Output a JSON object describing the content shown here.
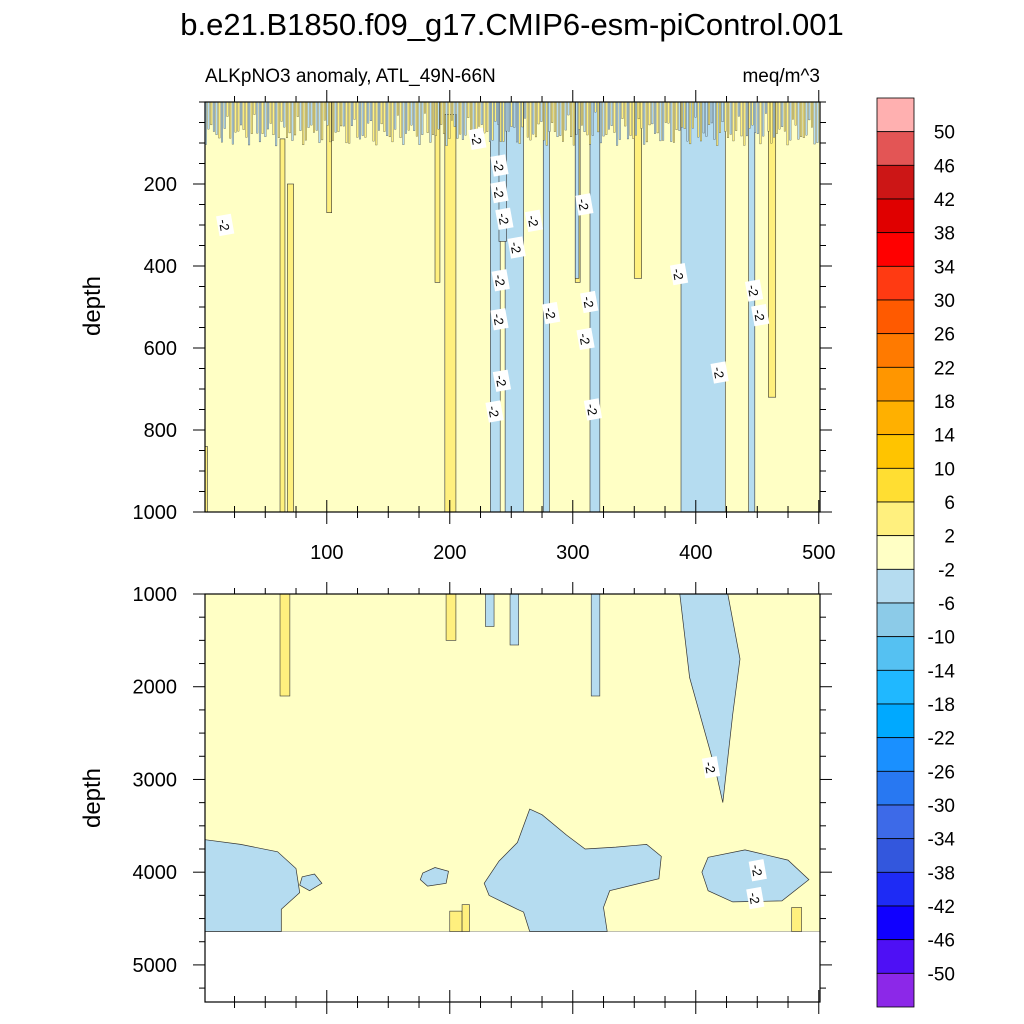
{
  "chart_data": {
    "type": "contour",
    "title": "b.e21.B1850.f09_g17.CMIP6-esm-piControl.001",
    "subtitle_left": "ALKpNO3 anomaly, ATL_49N-66N",
    "subtitle_right": "meq/m^3",
    "xlim": [
      1,
      501
    ],
    "x_ticks": [
      100,
      200,
      300,
      400,
      500
    ],
    "colors": {
      "pos2": "#ffffc5",
      "pos6": "#fff07e",
      "neg2": "#b5dcf0",
      "neg6": "#8ccbe8",
      "line": "#333333",
      "missing": "#ffffff"
    },
    "panels": [
      {
        "name": "upper",
        "ylabel": "depth",
        "ylim": [
          0,
          1000
        ],
        "y_ticks": [
          200,
          400,
          600,
          800,
          1000
        ],
        "contour_label": "-2",
        "labels": [
          [
            222,
            90
          ],
          [
            240,
            155
          ],
          [
            240,
            220
          ],
          [
            244,
            285
          ],
          [
            268,
            290
          ],
          [
            254,
            355
          ],
          [
            241,
            435
          ],
          [
            309,
            250
          ],
          [
            313,
            488
          ],
          [
            310,
            578
          ],
          [
            282,
            515
          ],
          [
            240,
            530
          ],
          [
            242,
            680
          ],
          [
            316,
            750
          ],
          [
            236,
            755
          ],
          [
            386,
            420
          ],
          [
            419,
            660
          ],
          [
            447,
            460
          ],
          [
            452,
            520
          ],
          [
            17,
            300
          ]
        ],
        "neg_bands": [
          [
            233,
            241,
            0,
            1000
          ],
          [
            245,
            260,
            0,
            1000
          ],
          [
            276,
            281,
            0,
            1000
          ],
          [
            314,
            322,
            0,
            1000
          ],
          [
            388,
            424,
            0,
            1000
          ],
          [
            443,
            448,
            0,
            1000
          ],
          [
            302,
            305,
            0,
            430
          ],
          [
            240,
            246,
            0,
            340
          ]
        ],
        "pos_bands": [
          [
            62,
            66,
            90,
            1000
          ],
          [
            68,
            73,
            200,
            1000
          ],
          [
            196,
            205,
            30,
            1000
          ],
          [
            100,
            104,
            0,
            270
          ],
          [
            188,
            192,
            0,
            440
          ],
          [
            302,
            306,
            0,
            440
          ],
          [
            350,
            356,
            0,
            430
          ],
          [
            459,
            465,
            0,
            720
          ],
          [
            0,
            3,
            840,
            1000
          ]
        ]
      },
      {
        "name": "lower",
        "ylabel": "depth",
        "ylim": [
          1000,
          5400
        ],
        "y_ticks": [
          1000,
          2000,
          3000,
          4000,
          5000
        ],
        "data_bottom": 4640,
        "contour_label": "-2",
        "labels": [
          [
            412,
            2870
          ],
          [
            450,
            3980
          ],
          [
            448,
            4280
          ]
        ],
        "neg_bands": [
          [
            229,
            236,
            1000,
            1350
          ],
          [
            249,
            256,
            1000,
            1550
          ],
          [
            315,
            322,
            1000,
            2100
          ]
        ],
        "neg_polys": [
          [
            [
              389,
              1000
            ],
            [
              426,
              1000
            ],
            [
              436,
              1700
            ],
            [
              430,
              2300
            ],
            [
              422,
              3250
            ],
            [
              416,
              2900
            ],
            [
              395,
              1900
            ],
            [
              387,
              1000
            ]
          ],
          [
            [
              1,
              3650
            ],
            [
              30,
              3700
            ],
            [
              60,
              3780
            ],
            [
              75,
              3960
            ],
            [
              78,
              4220
            ],
            [
              63,
              4400
            ],
            [
              63,
              4640
            ],
            [
              1,
              4640
            ]
          ],
          [
            [
              265,
              3320
            ],
            [
              275,
              3380
            ],
            [
              295,
              3600
            ],
            [
              310,
              3750
            ],
            [
              335,
              3730
            ],
            [
              360,
              3700
            ],
            [
              372,
              3830
            ],
            [
              370,
              4070
            ],
            [
              330,
              4200
            ],
            [
              325,
              4380
            ],
            [
              328,
              4640
            ],
            [
              265,
              4640
            ],
            [
              260,
              4430
            ],
            [
              255,
              4400
            ],
            [
              232,
              4250
            ],
            [
              228,
              4120
            ],
            [
              240,
              3880
            ],
            [
              255,
              3680
            ]
          ],
          [
            [
              410,
              3840
            ],
            [
              440,
              3760
            ],
            [
              475,
              3870
            ],
            [
              492,
              4080
            ],
            [
              470,
              4310
            ],
            [
              430,
              4320
            ],
            [
              410,
              4200
            ],
            [
              405,
              4000
            ]
          ],
          [
            [
              178,
              4010
            ],
            [
              188,
              3950
            ],
            [
              199,
              3990
            ],
            [
              197,
              4120
            ],
            [
              182,
              4150
            ],
            [
              176,
              4080
            ]
          ],
          [
            [
              80,
              4050
            ],
            [
              90,
              4020
            ],
            [
              96,
              4120
            ],
            [
              86,
              4200
            ],
            [
              78,
              4140
            ]
          ]
        ],
        "pos_bands": [
          [
            62,
            70,
            1000,
            2100
          ],
          [
            197,
            205,
            1000,
            1500
          ],
          [
            200,
            210,
            4420,
            4640
          ],
          [
            210,
            216,
            4350,
            4640
          ],
          [
            478,
            486,
            4380,
            4640
          ]
        ]
      }
    ],
    "colorbar": {
      "labels": [
        "50",
        "46",
        "42",
        "38",
        "34",
        "30",
        "26",
        "22",
        "18",
        "14",
        "10",
        "6",
        "2",
        "-2",
        "-6",
        "-10",
        "-14",
        "-18",
        "-22",
        "-26",
        "-30",
        "-34",
        "-38",
        "-42",
        "-46",
        "-50"
      ],
      "colors": [
        "#ffb0b0",
        "#e35555",
        "#cc1616",
        "#e00000",
        "#ff0000",
        "#ff3a12",
        "#ff5a00",
        "#ff7a00",
        "#ff9600",
        "#ffb000",
        "#ffc400",
        "#ffde32",
        "#fff07e",
        "#ffffc5",
        "#b5dcf0",
        "#8ccbe8",
        "#55c1f2",
        "#20b8ff",
        "#00a9ff",
        "#1a90ff",
        "#2878f2",
        "#3d6ae8",
        "#3357dd",
        "#1e2bf5",
        "#1000ff",
        "#4e10f5",
        "#8c28e8"
      ]
    }
  }
}
